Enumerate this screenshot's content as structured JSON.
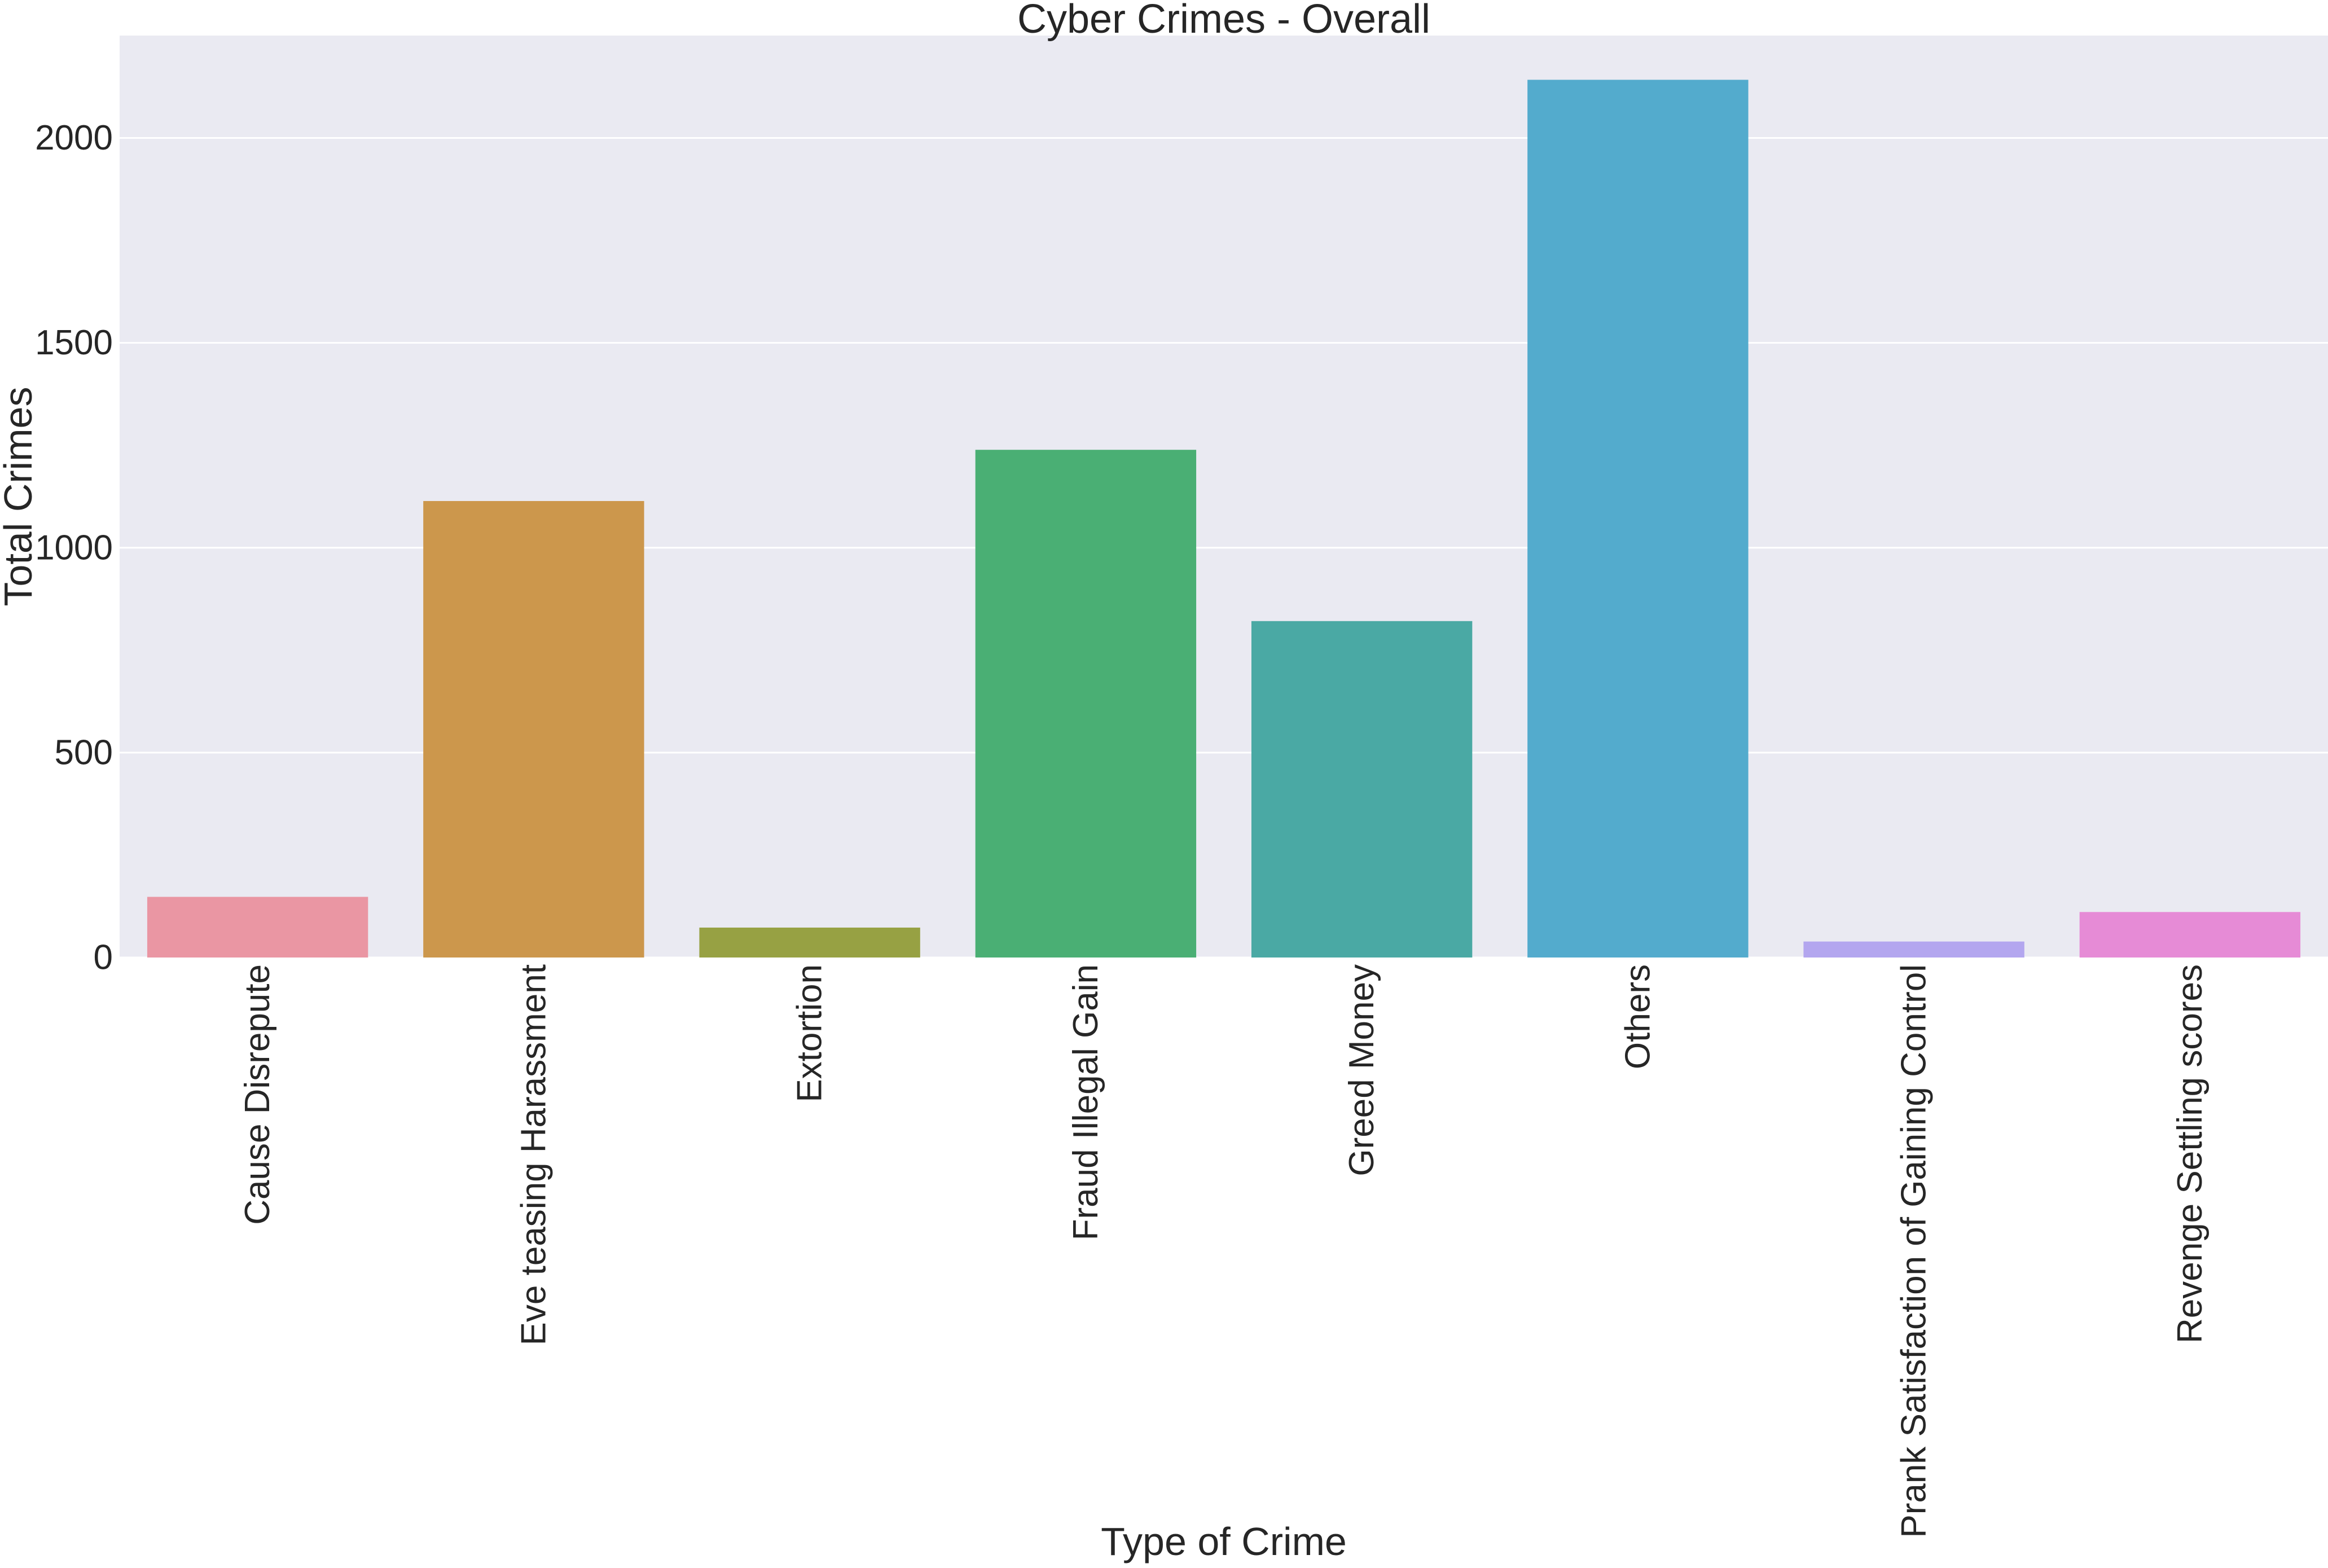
{
  "chart_data": {
    "type": "bar",
    "title": "Cyber Crimes - Overall",
    "xlabel": "Type of Crime",
    "ylabel": "Total Crimes",
    "categories": [
      "Cause Disrepute",
      "Eve teasing Harassment",
      "Extortion",
      "Fraud Illegal Gain",
      "Greed Money",
      "Others",
      "Prank Satisfaction of Gaining Control",
      "Revenge Settling scores"
    ],
    "values": [
      148,
      1114,
      73,
      1239,
      821,
      2142,
      39,
      111
    ],
    "colors": [
      "#ea96a3",
      "#cc974c",
      "#97a143",
      "#4aaf74",
      "#4aa9a4",
      "#53abcd",
      "#b3a6ef",
      "#e68bd6"
    ],
    "ylim": [
      0,
      2250
    ],
    "yticks": [
      0,
      500,
      1000,
      1500,
      2000
    ],
    "grid": true,
    "legend": "none",
    "background_color": "#eaeaf2",
    "grid_color": "#ffffff"
  }
}
